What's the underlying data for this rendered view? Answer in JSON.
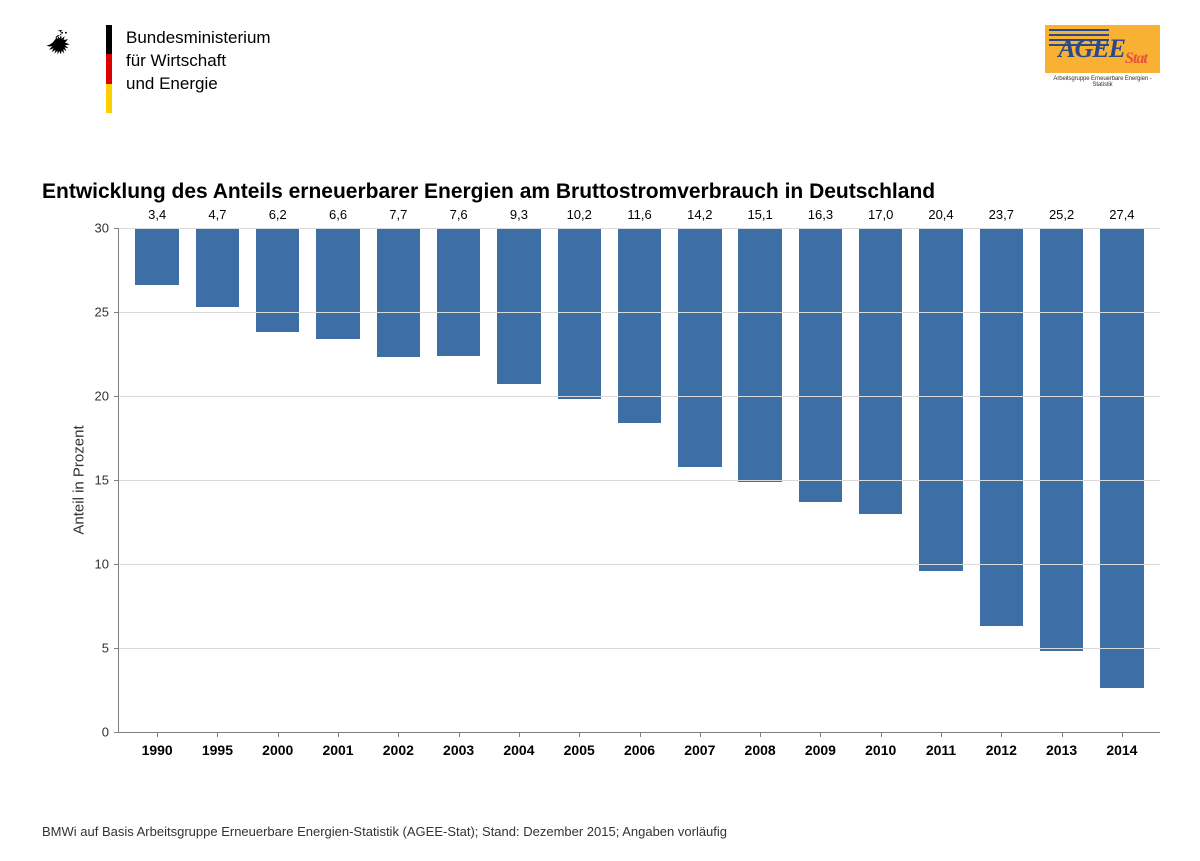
{
  "header": {
    "ministry_line1": "Bundesministerium",
    "ministry_line2": "für Wirtschaft",
    "ministry_line3": "und Energie",
    "flag_colors": [
      "#000000",
      "#dd0000",
      "#ffce00"
    ],
    "agee": {
      "main": "AGEE",
      "suffix": "Stat",
      "subtitle": "Arbeitsgruppe Erneuerbare Energien - Statistik",
      "bg_color": "#f8b133",
      "main_color": "#2a4a8a",
      "suffix_color": "#e6533c"
    }
  },
  "chart": {
    "title": "Entwicklung des Anteils erneuerbarer Energien am Bruttostromverbrauch in Deutschland",
    "type": "bar",
    "yaxis_label": "Anteil in Prozent",
    "ylim": [
      0,
      30
    ],
    "ytick_step": 5,
    "yticks": [
      0,
      5,
      10,
      15,
      20,
      25,
      30
    ],
    "bar_color": "#3d6fa6",
    "grid_color": "#d9d9d9",
    "axis_color": "#808080",
    "background_color": "#ffffff",
    "value_label_fontsize": 13,
    "xtick_fontsize": 14,
    "xtick_fontweight": "bold",
    "title_fontsize": 21,
    "title_fontweight": "bold",
    "yaxis_label_fontsize": 15,
    "bar_width_ratio": 0.72,
    "decimal_separator": ",",
    "categories": [
      "1990",
      "1995",
      "2000",
      "2001",
      "2002",
      "2003",
      "2004",
      "2005",
      "2006",
      "2007",
      "2008",
      "2009",
      "2010",
      "2011",
      "2012",
      "2013",
      "2014"
    ],
    "values": [
      3.4,
      4.7,
      6.2,
      6.6,
      7.7,
      7.6,
      9.3,
      10.2,
      11.6,
      14.2,
      15.1,
      16.3,
      17.0,
      20.4,
      23.7,
      25.2,
      27.4
    ],
    "value_labels": [
      "3,4",
      "4,7",
      "6,2",
      "6,6",
      "7,7",
      "7,6",
      "9,3",
      "10,2",
      "11,6",
      "14,2",
      "15,1",
      "16,3",
      "17,0",
      "20,4",
      "23,7",
      "25,2",
      "27,4"
    ]
  },
  "source_note": "BMWi auf Basis Arbeitsgruppe Erneuerbare Energien-Statistik (AGEE-Stat); Stand: Dezember 2015; Angaben vorläufig"
}
